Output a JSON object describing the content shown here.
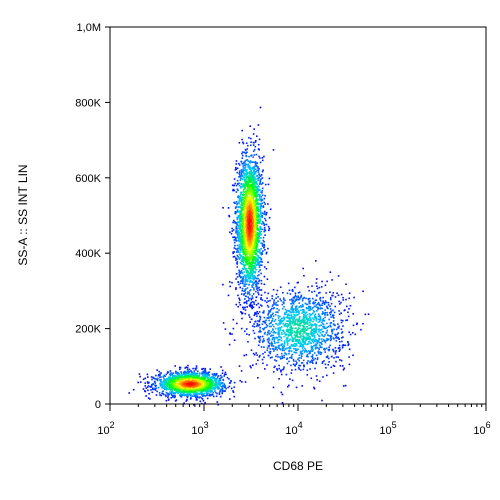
{
  "chart_data": {
    "type": "scatter",
    "title": "",
    "xlabel": "CD68 PE",
    "ylabel": "SS-A :: SS INT LIN",
    "x_scale": "log",
    "xlim": [
      100,
      1000000
    ],
    "ylim": [
      0,
      1000000
    ],
    "grid": false,
    "x_ticks": [
      {
        "value": 100,
        "base": "10",
        "exp": "2"
      },
      {
        "value": 1000,
        "base": "10",
        "exp": "3"
      },
      {
        "value": 10000,
        "base": "10",
        "exp": "4"
      },
      {
        "value": 100000,
        "base": "10",
        "exp": "5"
      },
      {
        "value": 1000000,
        "base": "10",
        "exp": "6"
      }
    ],
    "y_ticks": [
      {
        "value": 0,
        "label": "0"
      },
      {
        "value": 200000,
        "label": "200K"
      },
      {
        "value": 400000,
        "label": "400K"
      },
      {
        "value": 600000,
        "label": "600K"
      },
      {
        "value": 800000,
        "label": "800K"
      },
      {
        "value": 1000000,
        "label": "1,0M"
      }
    ],
    "color_scale": [
      "#0000ff",
      "#00c8ff",
      "#00ff00",
      "#ffff00",
      "#ff0000"
    ],
    "populations": [
      {
        "center_x": 3000,
        "center_y": 480000,
        "spread_log_x": 0.07,
        "spread_y": 90000,
        "events": 2600,
        "peak_density": 1.0
      },
      {
        "center_x": 700,
        "center_y": 55000,
        "spread_log_x": 0.18,
        "spread_y": 16000,
        "events": 1800,
        "peak_density": 1.0
      },
      {
        "center_x": 10000,
        "center_y": 200000,
        "spread_log_x": 0.25,
        "spread_y": 55000,
        "events": 1500,
        "peak_density": 0.35
      }
    ]
  }
}
